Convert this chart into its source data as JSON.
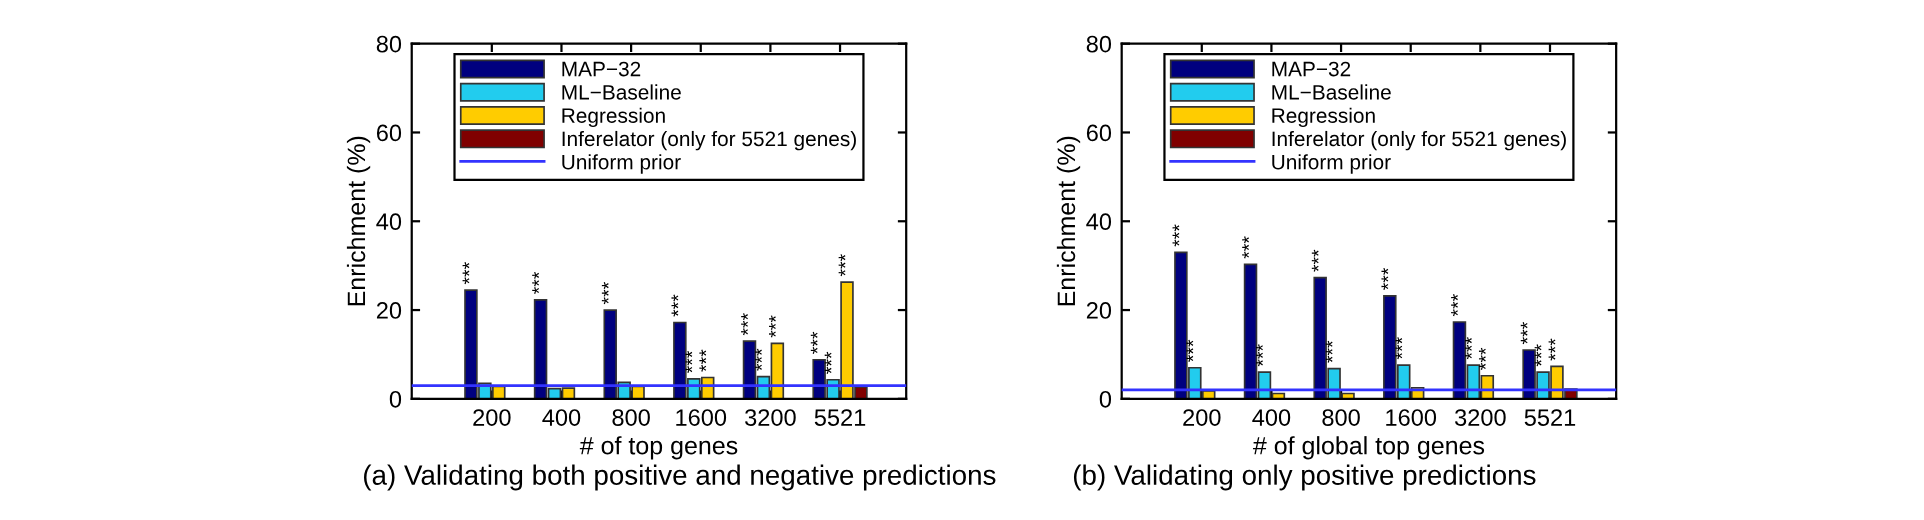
{
  "chart_data": [
    {
      "type": "bar",
      "title": "(a) Validating both positive and negative predictions",
      "xlabel": "# of top genes",
      "ylabel": "Enrichment (%)",
      "categories": [
        "200",
        "400",
        "800",
        "1600",
        "3200",
        "5521"
      ],
      "ylim": [
        0,
        80
      ],
      "yticks": [
        0,
        20,
        40,
        60,
        80
      ],
      "grid": false,
      "legend": "top",
      "series": [
        {
          "name": "MAP−32",
          "color": "#00007f",
          "values": [
            24.5,
            22.3,
            20,
            17.2,
            13,
            8.8
          ],
          "value_labels": [
            "***",
            "***",
            "***",
            "***",
            "***",
            "***"
          ]
        },
        {
          "name": "ML−Baseline",
          "color": "#22ccee",
          "values": [
            3.5,
            2.3,
            3.7,
            4.5,
            5,
            4.3
          ],
          "value_labels": [
            null,
            null,
            null,
            "***",
            "***",
            "***"
          ]
        },
        {
          "name": "Regression",
          "color": "#ffcc00",
          "values": [
            2.8,
            2.4,
            2.8,
            4.8,
            12.5,
            26.3
          ],
          "value_labels": [
            null,
            null,
            null,
            "***",
            "***",
            "***"
          ]
        },
        {
          "name": "Inferelator (only for 5521 genes)",
          "color": "#800000",
          "values": [
            null,
            null,
            null,
            null,
            null,
            2.7
          ]
        }
      ],
      "ref_lines": [
        {
          "axis": "y",
          "value": 3,
          "label": "Uniform prior",
          "color": "#3333ff"
        }
      ]
    },
    {
      "type": "bar",
      "title": "(b) Validating only positive predictions",
      "xlabel": "# of global top genes",
      "ylabel": "Enrichment (%)",
      "categories": [
        "200",
        "400",
        "800",
        "1600",
        "3200",
        "5521"
      ],
      "ylim": [
        0,
        80
      ],
      "yticks": [
        0,
        20,
        40,
        60,
        80
      ],
      "grid": false,
      "legend": "top",
      "series": [
        {
          "name": "MAP−32",
          "color": "#00007f",
          "values": [
            33,
            30.3,
            27.3,
            23.2,
            17.3,
            11
          ],
          "value_labels": [
            "***",
            "***",
            "***",
            "***",
            "***",
            "***"
          ]
        },
        {
          "name": "ML−Baseline",
          "color": "#22ccee",
          "values": [
            7,
            6,
            6.8,
            7.6,
            7.6,
            6
          ],
          "value_labels": [
            "***",
            "***",
            "***",
            "***",
            "***",
            "***"
          ]
        },
        {
          "name": "Regression",
          "color": "#ffcc00",
          "values": [
            1.8,
            1.2,
            1.2,
            2.5,
            5.2,
            7.3
          ],
          "value_labels": [
            null,
            null,
            null,
            null,
            "***",
            "***"
          ]
        },
        {
          "name": "Inferelator (only for 5521 genes)",
          "color": "#800000",
          "values": [
            null,
            null,
            null,
            null,
            null,
            2.2
          ]
        }
      ],
      "ref_lines": [
        {
          "axis": "y",
          "value": 2,
          "label": "Uniform prior",
          "color": "#3333ff"
        }
      ]
    }
  ]
}
